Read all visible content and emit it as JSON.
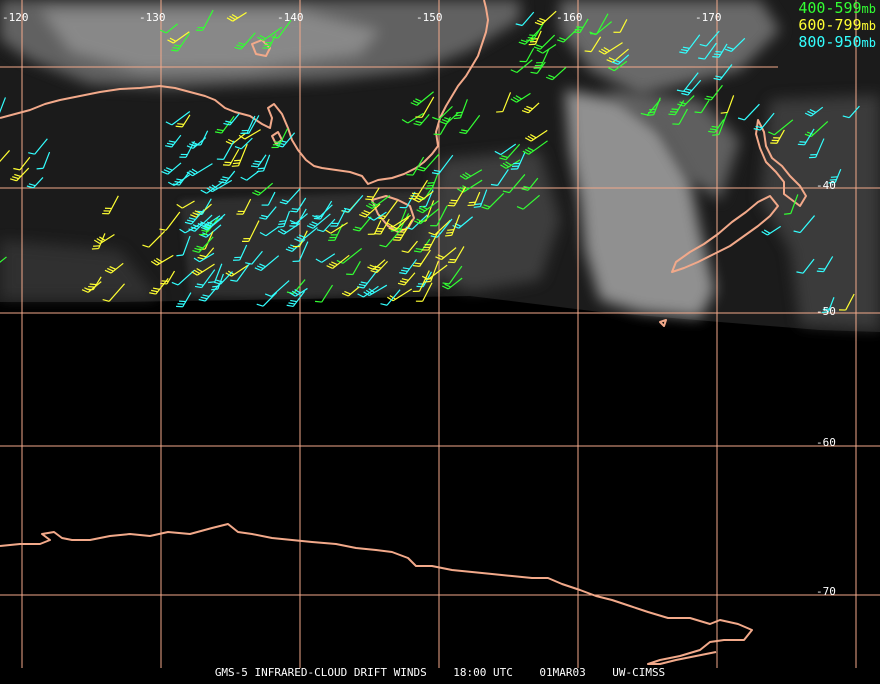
{
  "map": {
    "footer": {
      "product": "GMS-5 INFRARED-CLOUD DRIFT WINDS",
      "time": "18:00 UTC",
      "date": "01MAR03",
      "source": "UW-CIMSS"
    },
    "legend": [
      {
        "label": "400-599",
        "unit": "mb",
        "color": "#33ff33"
      },
      {
        "label": "600-799",
        "unit": "mb",
        "color": "#ffff33"
      },
      {
        "label": "800-950",
        "unit": "mb",
        "color": "#33ffff"
      }
    ],
    "longitude_labels": [
      "-120",
      "-130",
      "-140",
      "-150",
      "-160",
      "-170"
    ],
    "latitude_labels": [
      "-40",
      "-50",
      "-60",
      "-70"
    ],
    "colors": {
      "grid": "#f2a98a",
      "coastline": "#f2a98a",
      "background": "#000000"
    }
  }
}
